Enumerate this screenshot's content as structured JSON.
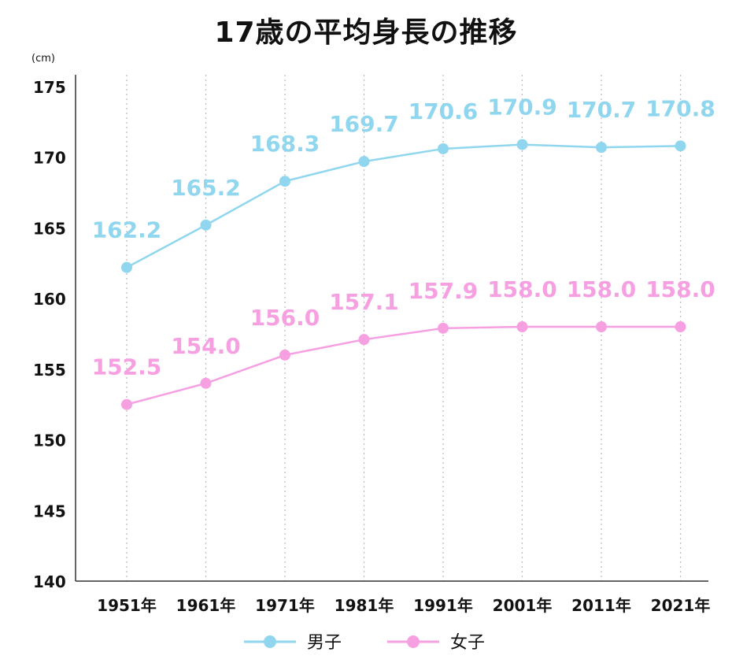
{
  "chart_data": {
    "type": "line",
    "title": "17歳の平均身長の推移",
    "ylabel": "(cm)",
    "categories": [
      "1951年",
      "1961年",
      "1971年",
      "1981年",
      "1991年",
      "2001年",
      "2011年",
      "2021年"
    ],
    "yticks": [
      "175",
      "170",
      "165",
      "160",
      "155",
      "150",
      "145",
      "140"
    ],
    "ylim": [
      140,
      175
    ],
    "grid": "vertical dotted",
    "legend_position": "bottom-center",
    "series": [
      {
        "name": "男子",
        "color": "#8fd6ee",
        "values": [
          162.2,
          165.2,
          168.3,
          169.7,
          170.6,
          170.9,
          170.7,
          170.8
        ],
        "labels": [
          "162.2",
          "165.2",
          "168.3",
          "169.7",
          "170.6",
          "170.9",
          "170.7",
          "170.8"
        ]
      },
      {
        "name": "女子",
        "color": "#f6a0e2",
        "values": [
          152.5,
          154.0,
          156.0,
          157.1,
          157.9,
          158.0,
          158.0,
          158.0
        ],
        "labels": [
          "152.5",
          "154.0",
          "156.0",
          "157.1",
          "157.9",
          "158.0",
          "158.0",
          "158.0"
        ]
      }
    ]
  }
}
